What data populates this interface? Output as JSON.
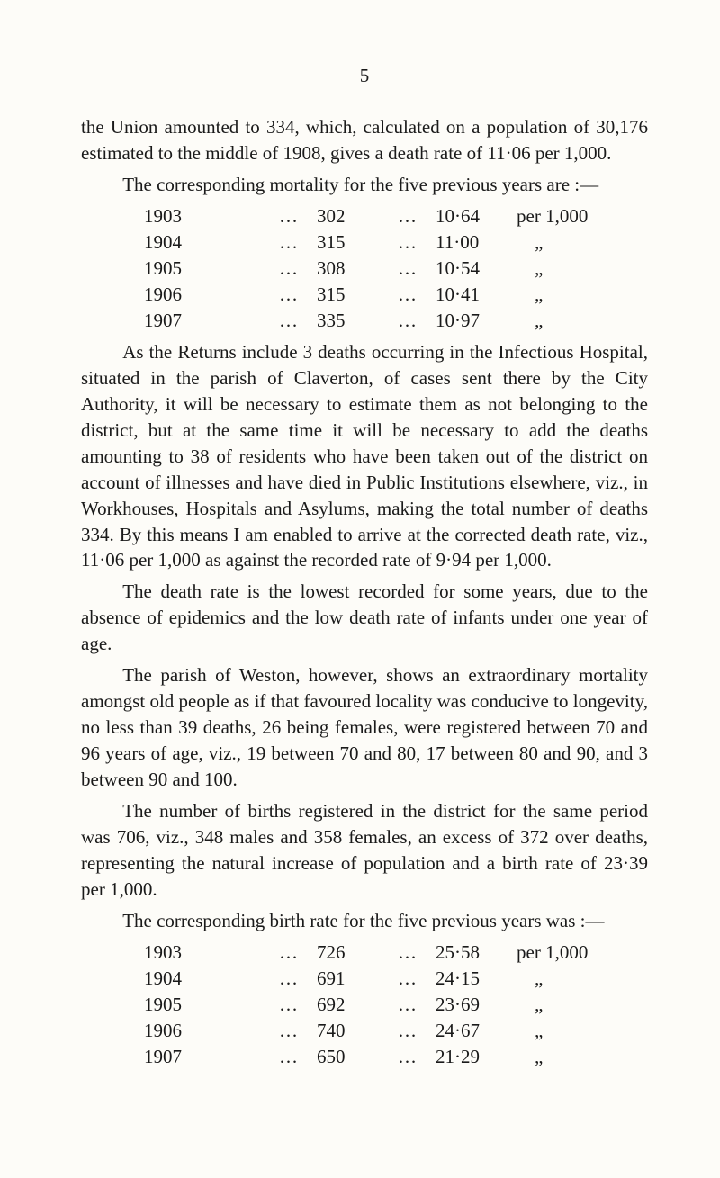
{
  "page_number": "5",
  "p1a": "the Union amounted to 334, which, calculated on a population of 30,176 estimated to the middle of 1908, gives a death rate of 11·06 per 1,000.",
  "p1b": "The corresponding mortality for the five previous years are :—",
  "mortality": {
    "rows": [
      {
        "year": "1903",
        "d1": "…",
        "val": "302",
        "d2": "…",
        "rate": "10·64",
        "per": "per 1,000"
      },
      {
        "year": "1904",
        "d1": "…",
        "val": "315",
        "d2": "…",
        "rate": "11·00",
        "per": "„"
      },
      {
        "year": "1905",
        "d1": "…",
        "val": "308",
        "d2": "…",
        "rate": "10·54",
        "per": "„"
      },
      {
        "year": "1906",
        "d1": "…",
        "val": "315",
        "d2": "…",
        "rate": "10·41",
        "per": "„"
      },
      {
        "year": "1907",
        "d1": "…",
        "val": "335",
        "d2": "…",
        "rate": "10·97",
        "per": "„"
      }
    ]
  },
  "p2": "As the Returns include 3 deaths occurring in the Infectious Hospital, situated in the parish of Claverton, of cases sent there by the City Authority, it will be necessary to estimate them as not belonging to the district, but at the same time it will be necessary to add the deaths amounting to 38 of residents who have been taken out of the district on account of illnesses and have died in Public Institutions elsewhere, viz., in Workhouses, Hospitals and Asylums, making the total number of deaths 334. By this means I am enabled to arrive at the corrected death rate, viz., 11·06 per 1,000 as against the recorded rate of 9·94 per 1,000.",
  "p3": "The death rate is the lowest recorded for some years, due to the absence of epidemics and the low death rate of infants under one year of age.",
  "p4": "The parish of Weston, however, shows an extraordinary mortality amongst old people as if that favoured locality was conducive to longevity, no less than 39 deaths, 26 being females, were registered between 70 and 96 years of age, viz., 19 between 70 and 80, 17 between 80 and 90, and 3 between 90 and 100.",
  "p5": "The number of births registered in the district for the same period was 706, viz., 348 males and 358 females, an excess of 372 over deaths, representing the natural increase of population and a birth rate of 23·39 per 1,000.",
  "p6": "The corresponding birth rate for the five previous years was :—",
  "births": {
    "rows": [
      {
        "year": "1903",
        "d1": "…",
        "val": "726",
        "d2": "…",
        "rate": "25·58",
        "per": "per 1,000"
      },
      {
        "year": "1904",
        "d1": "…",
        "val": "691",
        "d2": "…",
        "rate": "24·15",
        "per": "„"
      },
      {
        "year": "1905",
        "d1": "…",
        "val": "692",
        "d2": "…",
        "rate": "23·69",
        "per": "„"
      },
      {
        "year": "1906",
        "d1": "…",
        "val": "740",
        "d2": "…",
        "rate": "24·67",
        "per": "„"
      },
      {
        "year": "1907",
        "d1": "…",
        "val": "650",
        "d2": "…",
        "rate": "21·29",
        "per": "„"
      }
    ]
  }
}
